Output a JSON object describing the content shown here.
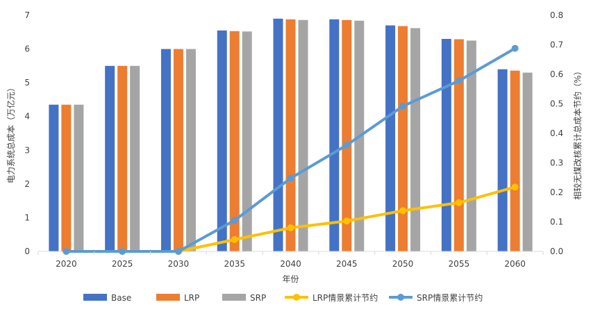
{
  "chart_data": {
    "type": "bar",
    "categories": [
      "2020",
      "2025",
      "2030",
      "2035",
      "2040",
      "2045",
      "2050",
      "2055",
      "2060"
    ],
    "xlabel": "年份",
    "ylabel_left": "电力系统总成本（万亿元）",
    "ylabel_right": "相较无煤改核累计总成本节约（%）",
    "ylim_left": [
      0,
      7
    ],
    "ylim_right": [
      0,
      0.8
    ],
    "yticks_left": [
      "0",
      "1",
      "2",
      "3",
      "4",
      "5",
      "6",
      "7"
    ],
    "yticks_right": [
      "0.0",
      "0.1",
      "0.2",
      "0.3",
      "0.4",
      "0.5",
      "0.6",
      "0.7",
      "0.8"
    ],
    "grid": false,
    "legend_position": "bottom",
    "bar_series": [
      {
        "name": "Base",
        "color": "#4472c4",
        "values": [
          4.35,
          5.5,
          6.0,
          6.55,
          6.9,
          6.88,
          6.7,
          6.3,
          5.4
        ]
      },
      {
        "name": "LRP",
        "color": "#ed7d31",
        "values": [
          4.35,
          5.5,
          6.0,
          6.53,
          6.88,
          6.86,
          6.68,
          6.29,
          5.36
        ]
      },
      {
        "name": "SRP",
        "color": "#a5a5a5",
        "values": [
          4.35,
          5.5,
          6.0,
          6.52,
          6.86,
          6.84,
          6.62,
          6.25,
          5.3
        ]
      }
    ],
    "line_series": [
      {
        "name": "LRP情景累计节约",
        "color": "#ffc000",
        "axis": "right",
        "values": [
          0.0,
          0.0,
          0.0,
          0.04,
          0.08,
          0.103,
          0.138,
          0.165,
          0.218
        ]
      },
      {
        "name": "SRP情景累计节约",
        "color": "#5b9bd5",
        "axis": "right",
        "values": [
          0.0,
          0.0,
          0.0,
          0.105,
          0.248,
          0.36,
          0.492,
          0.578,
          0.688
        ]
      }
    ]
  }
}
